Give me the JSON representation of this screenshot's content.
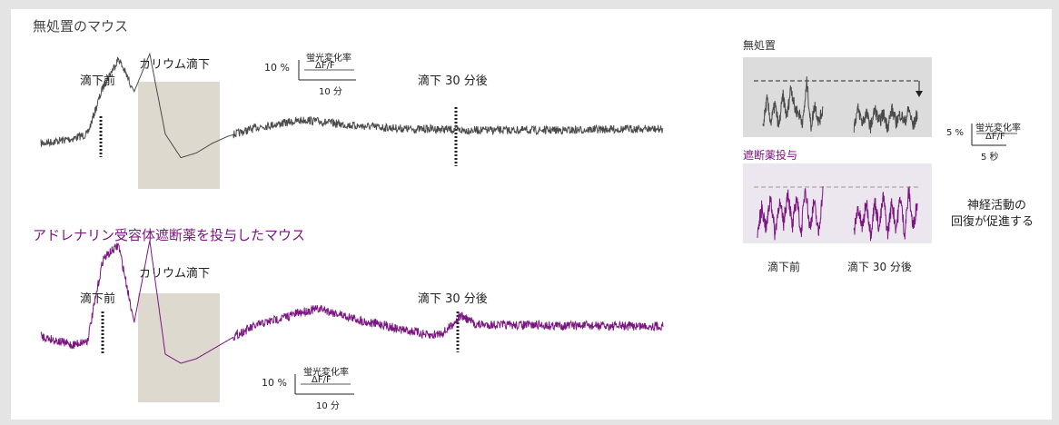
{
  "colors": {
    "untreated_trace": "#4a4a4a",
    "treated_trace": "#7b1581",
    "treated_title": "#7b1581",
    "potassium_box": "#ded9cf",
    "inset_bg_untreated": "#dcdcdc",
    "inset_bg_treated": "#ece7ee"
  },
  "text": {
    "untreated_title": "無処置のマウス",
    "treated_title": "アドレナリン受容体遮断薬を投与したマウス",
    "before_drop": "滴下前",
    "potassium_drop": "カリウム滴下",
    "after_30min": "滴下 30 分後",
    "scale_pct_10": "10 %",
    "scale_label": "蛍光変化率",
    "scale_unit": "ΔF/F",
    "scale_time_10": "10 分",
    "inset_untreated": "無処置",
    "inset_treated": "遮断薬投与",
    "inset_before": "滴下前",
    "inset_after": "滴下 30 分後",
    "scale_pct_5": "5 %",
    "scale_time_5": "5 秒",
    "conclusion_line1": "神経活動の",
    "conclusion_line2": "回復が促進する"
  },
  "chart_data": [
    {
      "type": "line",
      "title": "無処置のマウス",
      "ylabel": "蛍光変化率 ΔF/F",
      "scale_bar": {
        "y": "10 %",
        "x": "10 分"
      },
      "annotations": [
        "滴下前",
        "カリウム滴下",
        "滴下 30 分後"
      ],
      "series": [
        {
          "values": [
            0,
            0.5,
            1,
            2,
            12,
            18,
            11,
            19,
            2,
            -3,
            -2,
            0,
            1.5,
            2.5,
            3.5,
            4,
            4.5,
            5,
            4.6,
            4.2,
            3.8,
            3.6,
            3.4,
            3.2,
            3,
            3.1,
            3,
            2.8,
            2.8,
            2.8,
            2.8,
            2.8,
            2.8,
            2.8,
            2.8,
            2.9,
            3,
            3,
            3.1,
            3.1,
            3
          ]
        }
      ]
    },
    {
      "type": "line",
      "title": "アドレナリン受容体遮断薬を投与したマウス",
      "ylabel": "蛍光変化率 ΔF/F",
      "scale_bar": {
        "y": "10 %",
        "x": "10 分"
      },
      "annotations": [
        "滴下前",
        "カリウム滴下",
        "滴下 30 分後"
      ],
      "series": [
        {
          "values": [
            0,
            -1,
            -2,
            -1,
            17,
            20,
            3,
            21,
            -4,
            -6,
            -5,
            -3,
            -1,
            1,
            2.5,
            3.5,
            4.5,
            5.5,
            6,
            5,
            4,
            3,
            2.5,
            1.5,
            1,
            0,
            1,
            4.5,
            2.5,
            2.5,
            2.4,
            2.4,
            2.4,
            2.3,
            2.3,
            2.3,
            2.2,
            2.2,
            2.2,
            2.2,
            2.2
          ]
        }
      ]
    },
    {
      "type": "line",
      "title": "無処置",
      "annotations": [
        "滴下前",
        "滴下 30 分後"
      ],
      "scale_bar": {
        "y": "5 %",
        "x": "5 秒"
      },
      "series": [
        {
          "name": "滴下前",
          "values": [
            0,
            6,
            1,
            5,
            0,
            7,
            2,
            9,
            4,
            3,
            1,
            10,
            0,
            5,
            1,
            4
          ]
        },
        {
          "name": "滴下 30 分後",
          "values": [
            0,
            4,
            1,
            3,
            0,
            4,
            1,
            3,
            0,
            4,
            1,
            3,
            1,
            4,
            0,
            3
          ]
        }
      ]
    },
    {
      "type": "line",
      "title": "遮断薬投与",
      "annotations": [
        "滴下前",
        "滴下 30 分後"
      ],
      "scale_bar": {
        "y": "5 %",
        "x": "5 秒"
      },
      "series": [
        {
          "name": "滴下前",
          "values": [
            0,
            5,
            1,
            7,
            0,
            6,
            2,
            8,
            1,
            7,
            0,
            9,
            1,
            6,
            0,
            8
          ]
        },
        {
          "name": "滴下 30 分後",
          "values": [
            0,
            5,
            1,
            6,
            0,
            6,
            1,
            7,
            0,
            6,
            1,
            7,
            0,
            8,
            1,
            6
          ]
        }
      ]
    }
  ]
}
